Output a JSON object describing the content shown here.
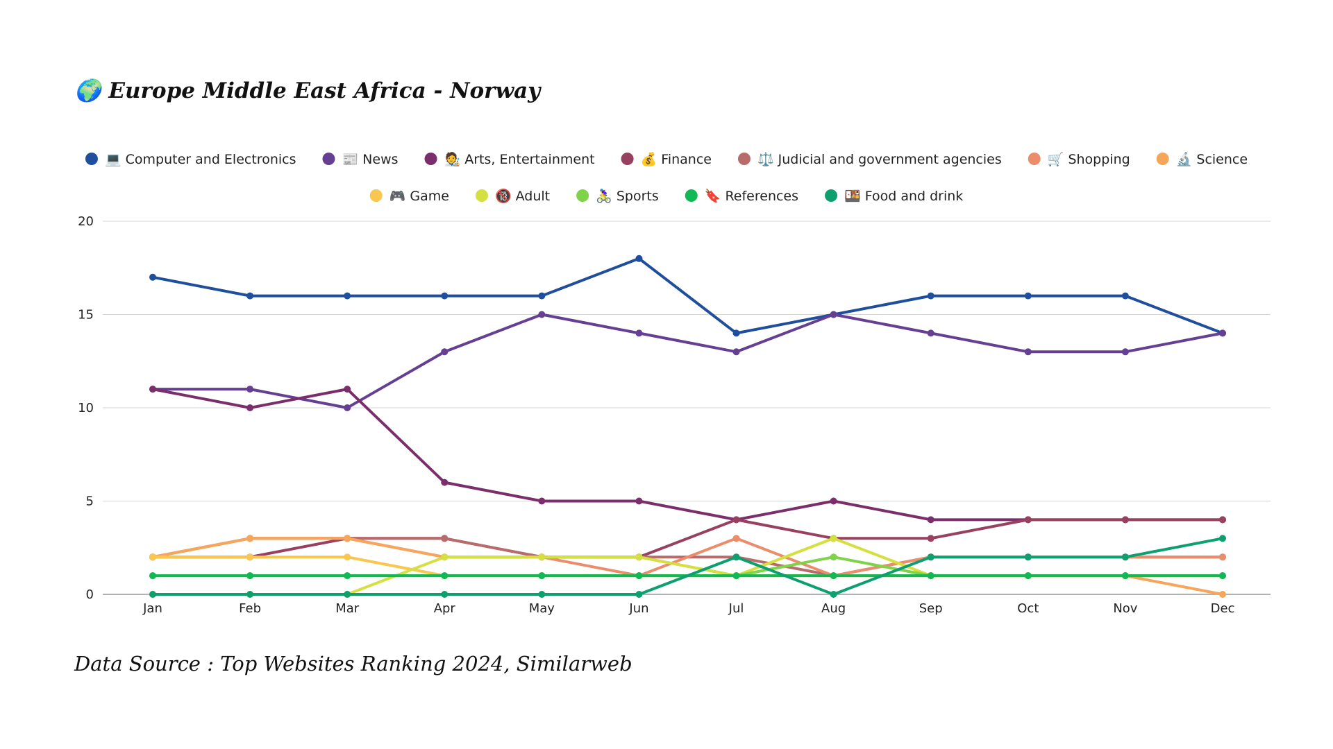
{
  "chart_data": {
    "type": "line",
    "title": "🌍 Europe Middle East Africa - Norway",
    "source": "Data Source : Top Websites Ranking 2024, Similarweb",
    "categories": [
      "Jan",
      "Feb",
      "Mar",
      "Apr",
      "May",
      "Jun",
      "Jul",
      "Aug",
      "Sep",
      "Oct",
      "Nov",
      "Dec"
    ],
    "ylim": [
      0,
      20
    ],
    "yticks": [
      "0",
      "5",
      "10",
      "15",
      "20"
    ],
    "grid": true,
    "legend_position": "top",
    "series": [
      {
        "name": "💻 Computer and Electronics",
        "color": "#1f4e9c",
        "values": [
          17,
          16,
          16,
          16,
          16,
          18,
          14,
          15,
          16,
          16,
          16,
          14
        ]
      },
      {
        "name": "📰 News",
        "color": "#653f92",
        "values": [
          11,
          11,
          10,
          13,
          15,
          14,
          13,
          15,
          14,
          13,
          13,
          14
        ]
      },
      {
        "name": "🧑‍🎨 Arts, Entertainment",
        "color": "#7a2e6c",
        "values": [
          11,
          10,
          11,
          6,
          5,
          5,
          4,
          5,
          4,
          4,
          4,
          4
        ]
      },
      {
        "name": "💰 Finance",
        "color": "#97405f",
        "values": [
          2,
          2,
          3,
          3,
          2,
          2,
          4,
          3,
          3,
          4,
          4,
          4
        ]
      },
      {
        "name": "⚖️ Judicial and government agencies",
        "color": "#b86b6b",
        "values": [
          2,
          3,
          3,
          3,
          2,
          2,
          2,
          1,
          2,
          2,
          2,
          2
        ]
      },
      {
        "name": "🛒 Shopping",
        "color": "#eb8c6b",
        "values": [
          2,
          3,
          3,
          2,
          2,
          1,
          3,
          1,
          2,
          2,
          2,
          2
        ]
      },
      {
        "name": "🔬 Science",
        "color": "#f5a65b",
        "values": [
          2,
          3,
          3,
          2,
          2,
          2,
          1,
          1,
          1,
          1,
          1,
          0
        ]
      },
      {
        "name": "🎮 Game",
        "color": "#f9c74f",
        "values": [
          2,
          2,
          2,
          1,
          1,
          1,
          1,
          1,
          1,
          1,
          1,
          1
        ]
      },
      {
        "name": "🔞 Adult",
        "color": "#d4e03f",
        "values": [
          0,
          0,
          0,
          2,
          2,
          2,
          1,
          3,
          1,
          1,
          1,
          1
        ]
      },
      {
        "name": "🚴‍♀️ Sports",
        "color": "#7ed348",
        "values": [
          1,
          1,
          1,
          1,
          1,
          1,
          1,
          2,
          1,
          1,
          1,
          1
        ]
      },
      {
        "name": "🔖 References",
        "color": "#10b956",
        "values": [
          1,
          1,
          1,
          1,
          1,
          1,
          1,
          1,
          1,
          1,
          1,
          1
        ]
      },
      {
        "name": "🍱 Food and drink",
        "color": "#0e9f6e",
        "values": [
          0,
          0,
          0,
          0,
          0,
          0,
          2,
          0,
          2,
          2,
          2,
          3
        ]
      }
    ]
  }
}
